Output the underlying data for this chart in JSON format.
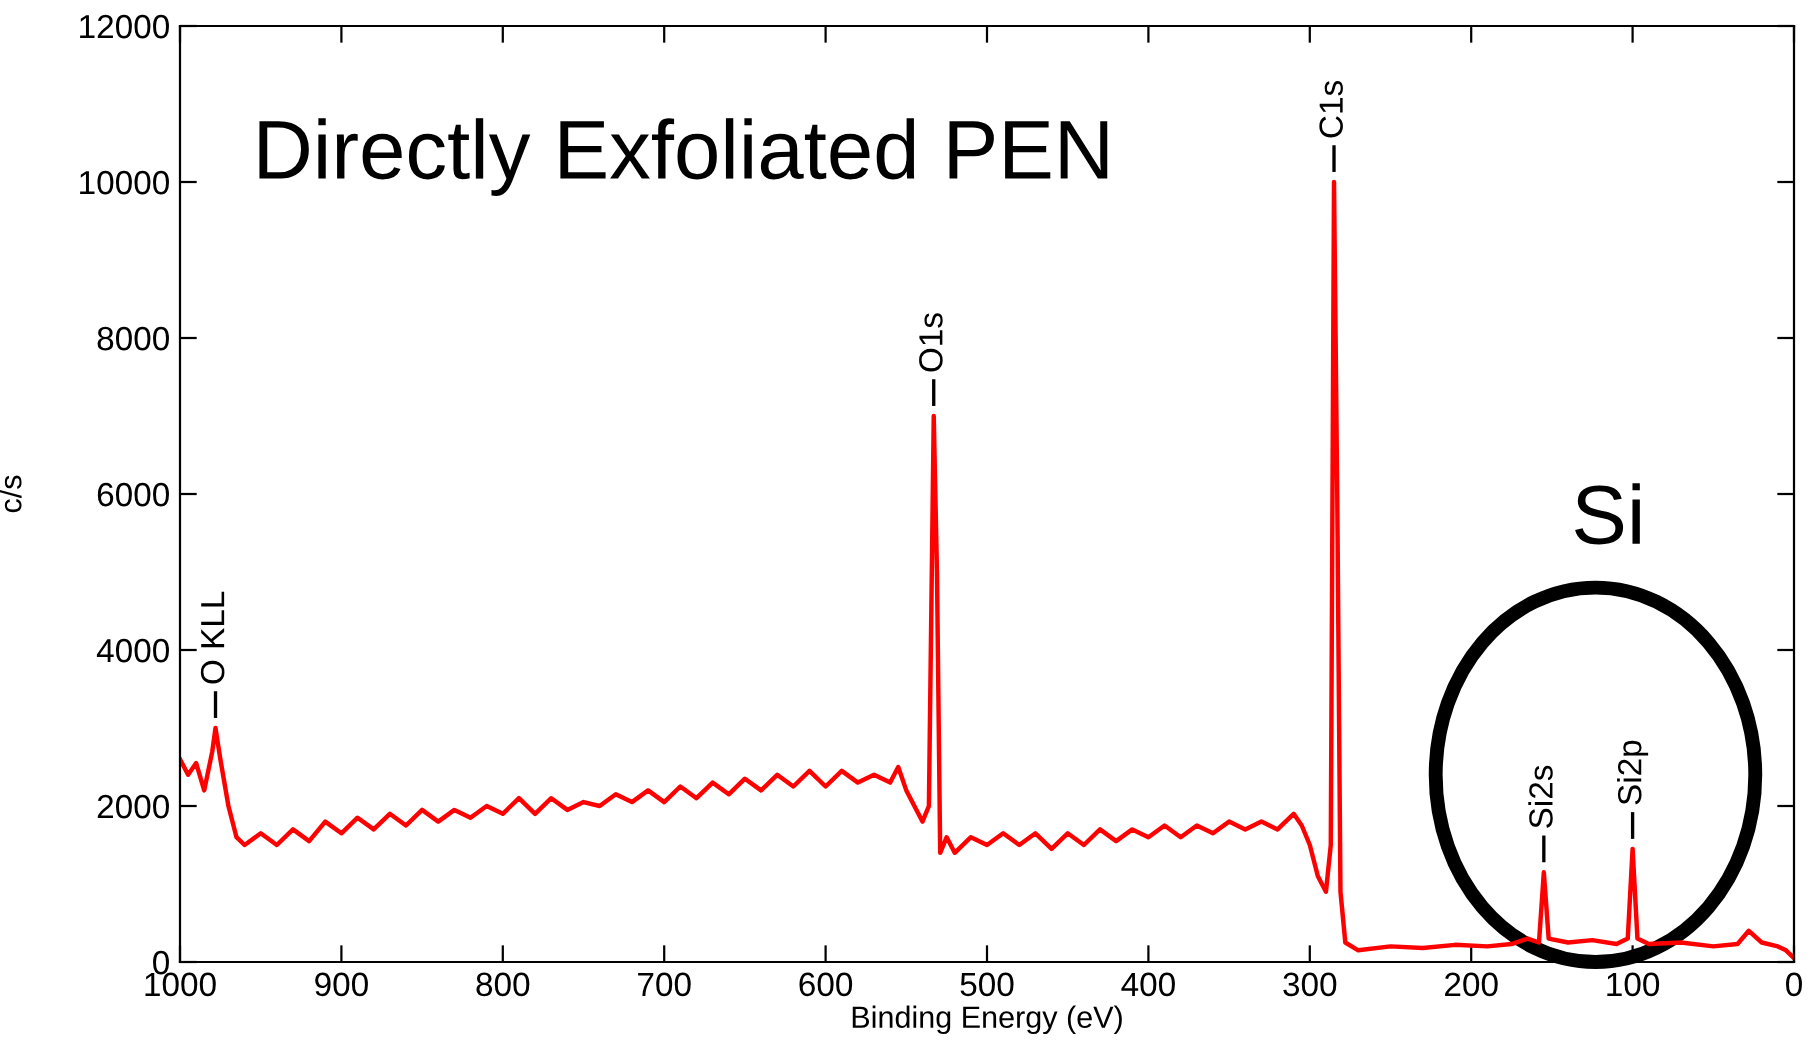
{
  "chart_data": {
    "type": "line",
    "xlabel": "Binding Energy (eV)",
    "ylabel": "c/s",
    "xlim": [
      1000,
      0
    ],
    "ylim": [
      0,
      12000
    ],
    "xticks": [
      1000,
      900,
      800,
      700,
      600,
      500,
      400,
      300,
      200,
      100,
      0
    ],
    "yticks": [
      0,
      2000,
      4000,
      6000,
      8000,
      10000,
      12000
    ],
    "grid": false,
    "legend": false,
    "series": [
      {
        "color": "#ff0000",
        "x": [
          1000,
          995,
          990,
          985,
          980,
          978,
          975,
          970,
          965,
          960,
          950,
          940,
          930,
          920,
          910,
          900,
          890,
          880,
          870,
          860,
          850,
          840,
          830,
          820,
          810,
          800,
          790,
          780,
          770,
          760,
          750,
          740,
          730,
          720,
          710,
          700,
          690,
          680,
          670,
          660,
          650,
          640,
          630,
          620,
          610,
          600,
          590,
          580,
          570,
          560,
          555,
          550,
          545,
          540,
          536,
          533,
          531,
          529,
          525,
          520,
          510,
          500,
          490,
          480,
          470,
          460,
          450,
          440,
          430,
          420,
          410,
          400,
          390,
          380,
          370,
          360,
          350,
          340,
          330,
          320,
          310,
          305,
          300,
          295,
          290,
          287,
          285,
          283,
          281,
          278,
          270,
          250,
          230,
          210,
          190,
          175,
          165,
          158,
          155,
          152,
          140,
          125,
          110,
          103,
          100,
          97,
          90,
          70,
          50,
          35,
          28,
          20,
          10,
          5,
          0
        ],
        "values": [
          2600,
          2400,
          2550,
          2200,
          2700,
          3000,
          2600,
          2000,
          1600,
          1500,
          1650,
          1500,
          1700,
          1550,
          1800,
          1650,
          1850,
          1700,
          1900,
          1750,
          1950,
          1800,
          1950,
          1850,
          2000,
          1900,
          2100,
          1900,
          2100,
          1950,
          2050,
          2000,
          2150,
          2050,
          2200,
          2050,
          2250,
          2100,
          2300,
          2150,
          2350,
          2200,
          2400,
          2250,
          2450,
          2250,
          2450,
          2300,
          2400,
          2300,
          2500,
          2200,
          2000,
          1800,
          2000,
          7000,
          5000,
          1400,
          1600,
          1400,
          1600,
          1500,
          1650,
          1500,
          1650,
          1450,
          1650,
          1500,
          1700,
          1550,
          1700,
          1600,
          1750,
          1600,
          1750,
          1650,
          1800,
          1700,
          1800,
          1700,
          1900,
          1750,
          1500,
          1100,
          900,
          1500,
          10000,
          6000,
          900,
          250,
          150,
          200,
          180,
          220,
          200,
          230,
          300,
          250,
          1150,
          300,
          250,
          280,
          230,
          300,
          1450,
          300,
          230,
          250,
          200,
          230,
          400,
          250,
          200,
          150,
          50
        ]
      }
    ],
    "annotations": [
      {
        "text": "O KLL",
        "x": 978,
        "y": 3000
      },
      {
        "text": "O1s",
        "x": 533,
        "y": 7000
      },
      {
        "text": "C1s",
        "x": 285,
        "y": 10000
      },
      {
        "text": "Si2s",
        "x": 155,
        "y": 1150
      },
      {
        "text": "Si2p",
        "x": 100,
        "y": 1450
      },
      "Directly Exfoliated PEN",
      "Si"
    ]
  }
}
